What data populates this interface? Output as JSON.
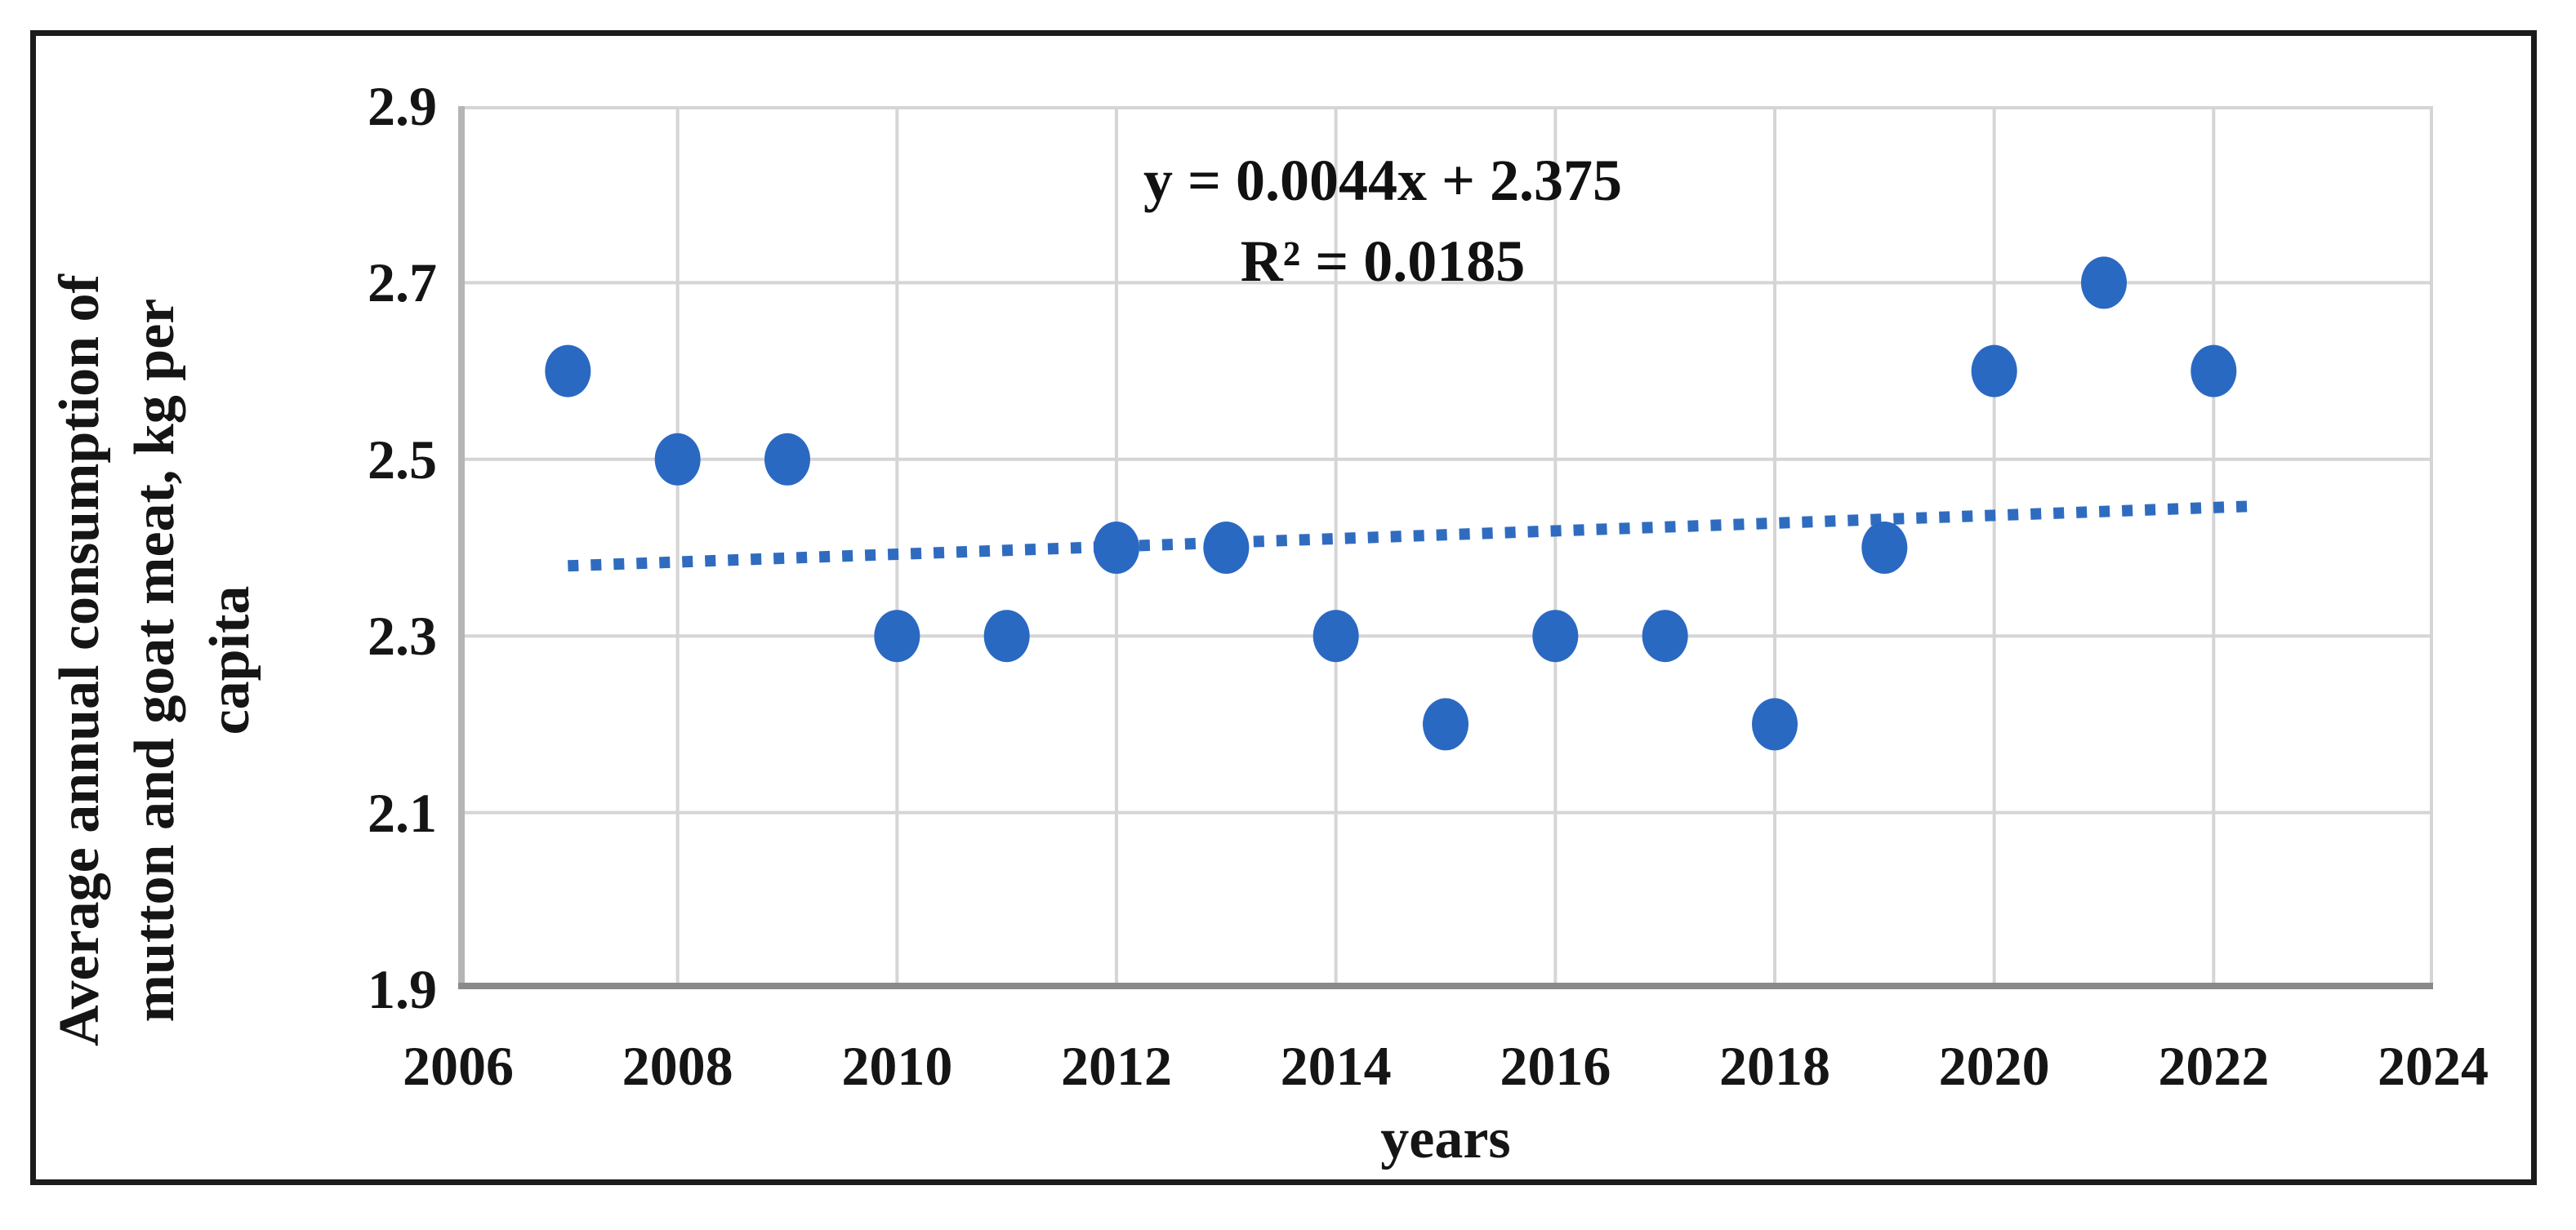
{
  "figure": {
    "border_color": "#1c1c1c",
    "background": "#ffffff"
  },
  "chart_data": {
    "type": "scatter",
    "title": "",
    "xlabel": "years",
    "ylabel": "Average annual consumption of mutton and goat meat, kg per capita",
    "ylabel_lines": [
      "Average annual consumption of",
      "mutton and goat meat, kg per",
      "capita"
    ],
    "xlim": [
      2006,
      2024
    ],
    "ylim": [
      1.9,
      2.9
    ],
    "x_ticks": [
      "2006",
      "2008",
      "2010",
      "2012",
      "2014",
      "2016",
      "2018",
      "2020",
      "2022",
      "2024"
    ],
    "y_ticks": [
      "2.9",
      "2.7",
      "2.5",
      "2.3",
      "2.1",
      "1.9"
    ],
    "grid": true,
    "legend": "none",
    "series": [
      {
        "name": "average annual consumption",
        "points": [
          {
            "x": 2007,
            "y": 2.6
          },
          {
            "x": 2008,
            "y": 2.5
          },
          {
            "x": 2009,
            "y": 2.5
          },
          {
            "x": 2010,
            "y": 2.3
          },
          {
            "x": 2011,
            "y": 2.3
          },
          {
            "x": 2012,
            "y": 2.4
          },
          {
            "x": 2013,
            "y": 2.4
          },
          {
            "x": 2014,
            "y": 2.3
          },
          {
            "x": 2015,
            "y": 2.2
          },
          {
            "x": 2016,
            "y": 2.3
          },
          {
            "x": 2017,
            "y": 2.3
          },
          {
            "x": 2018,
            "y": 2.2
          },
          {
            "x": 2019,
            "y": 2.4
          },
          {
            "x": 2020,
            "y": 2.6
          },
          {
            "x": 2021,
            "y": 2.7
          },
          {
            "x": 2022,
            "y": 2.6
          }
        ]
      }
    ],
    "trendline": {
      "equation": "y = 0.0044x + 2.375",
      "r_squared": "R² = 0.0185",
      "slope": 0.0044,
      "intercept": 2.375,
      "x_index_base": 2006,
      "x_start": 2007,
      "x_end": 2022.35,
      "style": "dotted"
    },
    "colors": {
      "point": "#2a69c2",
      "trendline": "#2f6cc0",
      "gridline": "#d5d5d5",
      "left_axis": "#b5b5b5",
      "bottom_axis": "#8a8a8a",
      "text": "#151515"
    }
  }
}
